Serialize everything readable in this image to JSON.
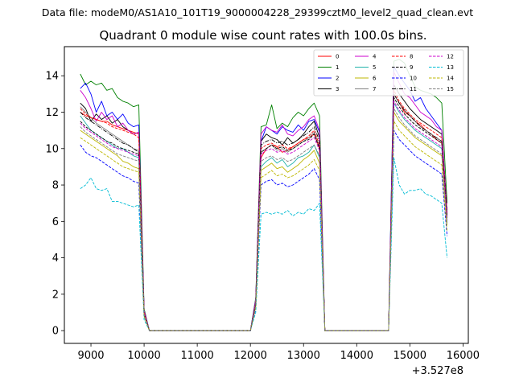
{
  "chart_data": {
    "type": "line",
    "suptitle": "Data file: modeM0/AS1A10_101T19_9000004228_29399cztM0_level2_quad_clean.evt",
    "title": "Quadrant 0 module wise count rates with 100.0s bins.",
    "xlabel": "",
    "ylabel": "",
    "x_offset_label": "+3.527e8",
    "xlim": [
      8500,
      16100
    ],
    "ylim": [
      -0.7,
      15.6
    ],
    "x_ticks": [
      9000,
      10000,
      11000,
      12000,
      13000,
      14000,
      15000,
      16000
    ],
    "y_ticks": [
      0,
      2,
      4,
      6,
      8,
      10,
      12,
      14
    ],
    "legend_location": "top-right",
    "legend_columns": 4,
    "x": [
      8800,
      8900,
      9000,
      9100,
      9200,
      9300,
      9400,
      9500,
      9600,
      9700,
      9800,
      9900,
      10000,
      10100,
      12000,
      12100,
      12200,
      12300,
      12400,
      12500,
      12600,
      12700,
      12800,
      12900,
      13000,
      13100,
      13200,
      13300,
      13400,
      13500,
      14600,
      14700,
      14800,
      14900,
      15000,
      15100,
      15200,
      15300,
      15400,
      15500,
      15600,
      15700
    ],
    "series": [
      {
        "name": "0",
        "color": "#ff0000",
        "style": "solid",
        "values": [
          12.0,
          11.8,
          11.7,
          11.6,
          11.5,
          11.5,
          11.3,
          11.2,
          11.1,
          11.0,
          10.9,
          10.8,
          1.0,
          0.0,
          0.0,
          1.5,
          9.5,
          10.0,
          10.2,
          10.1,
          9.8,
          9.9,
          10.1,
          10.3,
          10.5,
          10.6,
          10.8,
          10.0,
          0.0,
          0.0,
          0.0,
          13.0,
          12.5,
          12.0,
          11.8,
          11.5,
          11.3,
          11.0,
          10.8,
          10.5,
          10.3,
          6.5
        ]
      },
      {
        "name": "1",
        "color": "#008000",
        "style": "solid",
        "values": [
          14.1,
          13.5,
          13.7,
          13.5,
          13.6,
          13.2,
          13.3,
          12.8,
          12.6,
          12.5,
          12.3,
          12.4,
          1.2,
          0.0,
          0.0,
          1.8,
          11.2,
          11.3,
          12.4,
          11.1,
          11.4,
          11.2,
          11.7,
          12.0,
          11.8,
          12.2,
          12.5,
          11.8,
          0.0,
          0.0,
          0.0,
          14.8,
          14.9,
          14.7,
          14.0,
          13.4,
          13.2,
          13.1,
          13.0,
          12.8,
          12.5,
          7.0
        ]
      },
      {
        "name": "2",
        "color": "#0000ff",
        "style": "solid",
        "values": [
          13.3,
          13.6,
          13.0,
          12.0,
          12.6,
          11.8,
          12.0,
          11.6,
          11.9,
          11.4,
          11.2,
          11.3,
          1.1,
          0.0,
          0.0,
          1.7,
          10.4,
          11.2,
          11.0,
          10.8,
          11.2,
          11.0,
          10.9,
          11.3,
          11.0,
          11.5,
          11.6,
          10.9,
          0.0,
          0.0,
          0.0,
          14.5,
          14.0,
          13.6,
          13.2,
          12.6,
          12.8,
          12.2,
          11.8,
          11.4,
          11.0,
          6.5
        ]
      },
      {
        "name": "3",
        "color": "#000000",
        "style": "solid",
        "values": [
          12.5,
          12.2,
          11.5,
          11.9,
          11.6,
          11.8,
          11.4,
          11.6,
          11.2,
          11.0,
          10.8,
          10.9,
          1.0,
          0.0,
          0.0,
          1.6,
          10.4,
          10.8,
          10.6,
          10.5,
          10.2,
          10.6,
          10.3,
          10.5,
          10.8,
          11.2,
          11.5,
          10.6,
          0.0,
          0.0,
          0.0,
          13.5,
          13.0,
          12.6,
          12.2,
          11.9,
          11.6,
          11.4,
          11.2,
          11.0,
          10.8,
          6.5
        ]
      },
      {
        "name": "4",
        "color": "#cc00cc",
        "style": "solid",
        "values": [
          13.2,
          12.8,
          12.2,
          11.5,
          12.0,
          11.6,
          11.8,
          11.2,
          11.4,
          11.0,
          10.8,
          10.9,
          1.1,
          0.0,
          0.0,
          1.7,
          10.8,
          11.2,
          11.0,
          10.9,
          11.3,
          10.8,
          10.7,
          11.0,
          11.2,
          11.6,
          11.8,
          11.0,
          0.0,
          0.0,
          0.0,
          14.2,
          13.6,
          13.0,
          12.8,
          12.4,
          12.0,
          11.8,
          11.6,
          11.2,
          11.0,
          6.5
        ]
      },
      {
        "name": "5",
        "color": "#20b2aa",
        "style": "solid",
        "values": [
          11.8,
          11.4,
          11.0,
          10.8,
          10.6,
          10.4,
          10.2,
          10.0,
          10.0,
          9.8,
          9.6,
          9.5,
          0.9,
          0.0,
          0.0,
          1.4,
          9.0,
          9.3,
          9.5,
          9.2,
          9.4,
          9.0,
          9.2,
          9.5,
          9.6,
          9.8,
          10.2,
          9.5,
          0.0,
          0.0,
          0.0,
          12.5,
          12.0,
          11.6,
          11.3,
          11.0,
          10.8,
          10.6,
          10.4,
          10.2,
          10.0,
          6.0
        ]
      },
      {
        "name": "6",
        "color": "#bdb700",
        "style": "solid",
        "values": [
          11.0,
          10.8,
          10.6,
          10.4,
          10.2,
          10.0,
          9.8,
          9.6,
          9.3,
          9.2,
          9.0,
          8.9,
          0.8,
          0.0,
          0.0,
          1.3,
          8.8,
          9.0,
          9.2,
          8.9,
          9.0,
          8.7,
          8.9,
          9.1,
          9.4,
          9.6,
          9.9,
          9.2,
          0.0,
          0.0,
          0.0,
          12.0,
          11.5,
          11.2,
          10.9,
          10.6,
          10.4,
          10.2,
          10.0,
          9.8,
          9.6,
          5.8
        ]
      },
      {
        "name": "7",
        "color": "#808080",
        "style": "solid",
        "values": [
          12.3,
          12.0,
          11.7,
          11.4,
          11.2,
          11.0,
          10.8,
          10.6,
          10.4,
          10.2,
          10.0,
          9.9,
          0.9,
          0.0,
          0.0,
          1.5,
          9.8,
          10.0,
          10.2,
          9.9,
          10.0,
          9.8,
          10.0,
          10.2,
          10.4,
          10.6,
          10.9,
          10.1,
          0.0,
          0.0,
          0.0,
          13.0,
          12.5,
          12.1,
          11.8,
          11.5,
          11.2,
          11.0,
          10.8,
          10.6,
          10.4,
          6.3
        ]
      },
      {
        "name": "8",
        "color": "#ff0000",
        "style": "dashed",
        "values": [
          12.2,
          11.9,
          11.7,
          11.6,
          11.5,
          11.4,
          11.2,
          11.1,
          11.0,
          10.9,
          10.8,
          10.6,
          1.0,
          0.0,
          0.0,
          1.5,
          10.0,
          10.2,
          10.3,
          10.1,
          10.2,
          10.0,
          10.1,
          10.3,
          10.5,
          10.7,
          11.0,
          10.2,
          0.0,
          0.0,
          0.0,
          13.2,
          12.6,
          12.2,
          11.9,
          11.6,
          11.4,
          11.2,
          11.0,
          10.8,
          10.6,
          6.4
        ]
      },
      {
        "name": "9",
        "color": "#000000",
        "style": "dashed",
        "values": [
          11.5,
          11.2,
          11.0,
          10.8,
          10.6,
          10.4,
          10.3,
          10.1,
          10.0,
          9.9,
          9.8,
          9.7,
          0.9,
          0.0,
          0.0,
          1.4,
          9.8,
          10.0,
          10.2,
          10.0,
          10.1,
          9.9,
          10.0,
          10.2,
          10.4,
          10.5,
          10.8,
          10.0,
          0.0,
          0.0,
          0.0,
          12.8,
          12.3,
          11.9,
          11.6,
          11.3,
          11.1,
          10.9,
          10.7,
          10.5,
          10.3,
          6.2
        ]
      },
      {
        "name": "10",
        "color": "#0000ff",
        "style": "dashed",
        "values": [
          10.2,
          9.8,
          9.6,
          9.5,
          9.3,
          9.1,
          8.9,
          8.7,
          8.5,
          8.4,
          8.2,
          8.1,
          0.8,
          0.0,
          0.0,
          1.2,
          8.0,
          8.2,
          8.3,
          8.0,
          8.1,
          7.9,
          8.0,
          8.2,
          8.4,
          8.6,
          8.9,
          8.3,
          0.0,
          0.0,
          0.0,
          11.0,
          10.5,
          10.2,
          9.9,
          9.6,
          9.4,
          9.2,
          9.0,
          8.8,
          8.6,
          5.2
        ]
      },
      {
        "name": "11",
        "color": "#000000",
        "style": "dashdot",
        "values": [
          12.0,
          11.7,
          11.5,
          11.3,
          11.1,
          10.9,
          10.7,
          10.5,
          10.3,
          10.2,
          10.0,
          9.8,
          0.9,
          0.0,
          0.0,
          1.5,
          10.2,
          10.4,
          10.5,
          10.3,
          10.4,
          10.2,
          10.3,
          10.5,
          10.7,
          10.9,
          11.2,
          10.4,
          0.0,
          0.0,
          0.0,
          13.0,
          12.5,
          12.1,
          11.8,
          11.5,
          11.2,
          11.0,
          10.8,
          10.6,
          10.4,
          6.3
        ]
      },
      {
        "name": "12",
        "color": "#cc00cc",
        "style": "dashed",
        "values": [
          11.4,
          11.1,
          10.9,
          10.7,
          10.5,
          10.3,
          10.1,
          10.0,
          9.9,
          9.8,
          9.7,
          9.6,
          0.9,
          0.0,
          0.0,
          1.4,
          9.7,
          9.9,
          10.0,
          9.8,
          9.9,
          9.7,
          9.8,
          10.0,
          10.2,
          10.4,
          10.6,
          9.9,
          0.0,
          0.0,
          0.0,
          12.6,
          12.1,
          11.7,
          11.4,
          11.1,
          10.9,
          10.7,
          10.5,
          10.3,
          10.1,
          6.1
        ]
      },
      {
        "name": "13",
        "color": "#00bcd4",
        "style": "dashed",
        "values": [
          7.8,
          8.0,
          8.4,
          7.8,
          7.7,
          7.8,
          7.1,
          7.1,
          7.0,
          6.9,
          6.8,
          6.9,
          0.6,
          0.0,
          0.0,
          1.0,
          6.4,
          6.5,
          6.4,
          6.5,
          6.4,
          6.6,
          6.3,
          6.5,
          6.4,
          6.7,
          6.6,
          7.0,
          0.0,
          0.0,
          0.0,
          9.5,
          8.0,
          7.5,
          7.7,
          7.7,
          7.8,
          7.5,
          7.4,
          7.2,
          7.0,
          4.0
        ]
      },
      {
        "name": "14",
        "color": "#bdb700",
        "style": "dashed",
        "values": [
          10.6,
          10.4,
          10.2,
          10.0,
          9.8,
          9.6,
          9.4,
          9.2,
          9.0,
          8.9,
          8.8,
          8.7,
          0.8,
          0.0,
          0.0,
          1.3,
          8.4,
          8.6,
          8.8,
          8.5,
          8.6,
          8.4,
          8.5,
          8.7,
          8.9,
          9.1,
          9.4,
          8.8,
          0.0,
          0.0,
          0.0,
          11.5,
          11.0,
          10.7,
          10.4,
          10.1,
          9.9,
          9.7,
          9.5,
          9.3,
          9.1,
          5.5
        ]
      },
      {
        "name": "15",
        "color": "#808080",
        "style": "dashed",
        "values": [
          11.2,
          10.9,
          10.7,
          10.5,
          10.3,
          10.1,
          9.9,
          9.7,
          9.6,
          9.5,
          9.4,
          9.3,
          0.9,
          0.0,
          0.0,
          1.4,
          9.3,
          9.5,
          9.6,
          9.4,
          9.5,
          9.3,
          9.4,
          9.6,
          9.8,
          10.0,
          10.2,
          9.6,
          0.0,
          0.0,
          0.0,
          12.2,
          11.7,
          11.3,
          11.0,
          10.7,
          10.5,
          10.3,
          10.1,
          9.9,
          9.7,
          5.9
        ]
      }
    ]
  }
}
